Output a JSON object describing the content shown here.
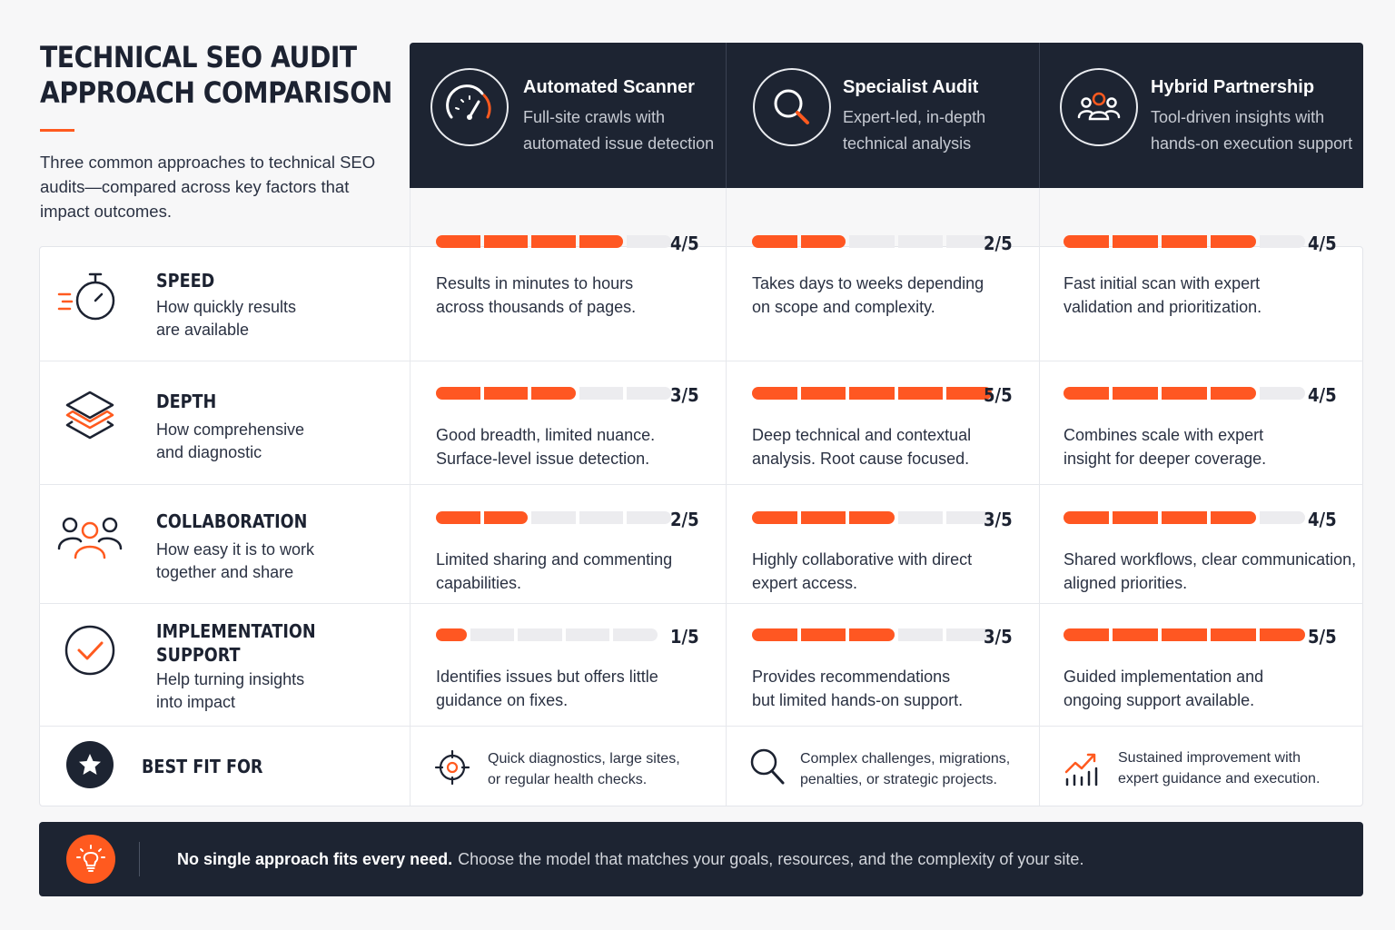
{
  "title": {
    "line1": "TECHNICAL SEO AUDIT",
    "line2": "APPROACH COMPARISON"
  },
  "subtitle": {
    "line1": "Three common approaches to technical SEO",
    "line2": "audits—compared across key factors that",
    "line3": "impact outcomes."
  },
  "colors": {
    "accent": "#ff5722",
    "dark": "#1d2432",
    "bar_empty": "#ececef"
  },
  "approaches": [
    {
      "title": "Automated Scanner",
      "desc1": "Full-site crawls with",
      "desc2": "automated issue detection",
      "icon": "speedometer-icon"
    },
    {
      "title": "Specialist Audit",
      "desc1": "Expert-led, in-depth",
      "desc2": "technical analysis",
      "icon": "magnifier-icon"
    },
    {
      "title": "Hybrid Partnership",
      "desc1": "Tool-driven insights with",
      "desc2": "hands-on execution support",
      "icon": "team-icon"
    }
  ],
  "factors": [
    {
      "title1": "SPEED",
      "title2": "",
      "desc1": "How quickly results",
      "desc2": "are available",
      "icon": "stopwatch-icon",
      "cells": [
        {
          "score": 4,
          "label": "4/5",
          "line1": "Results in minutes to hours",
          "line2": "across thousands of pages."
        },
        {
          "score": 2,
          "label": "2/5",
          "line1": "Takes days to weeks depending",
          "line2": "on scope and complexity."
        },
        {
          "score": 4,
          "label": "4/5",
          "line1": "Fast initial scan with expert",
          "line2": "validation and prioritization."
        }
      ]
    },
    {
      "title1": "DEPTH",
      "title2": "",
      "desc1": "How comprehensive",
      "desc2": "and diagnostic",
      "icon": "layers-icon",
      "cells": [
        {
          "score": 3,
          "label": "3/5",
          "line1": "Good breadth, limited nuance.",
          "line2": "Surface-level issue detection."
        },
        {
          "score": 5,
          "label": "5/5",
          "line1": "Deep technical and contextual",
          "line2": "analysis. Root cause focused."
        },
        {
          "score": 4,
          "label": "4/5",
          "line1": "Combines scale with expert",
          "line2": "insight for deeper coverage."
        }
      ]
    },
    {
      "title1": "COLLABORATION",
      "title2": "",
      "desc1": "How easy it is to work",
      "desc2": "together and share",
      "icon": "people-icon",
      "cells": [
        {
          "score": 2,
          "label": "2/5",
          "line1": "Limited sharing and commenting",
          "line2": "capabilities."
        },
        {
          "score": 3,
          "label": "3/5",
          "line1": "Highly collaborative with direct",
          "line2": "expert access."
        },
        {
          "score": 4,
          "label": "4/5",
          "line1": "Shared workflows, clear communication,",
          "line2": "aligned priorities."
        }
      ]
    },
    {
      "title1": "IMPLEMENTATION",
      "title2": "SUPPORT",
      "desc1": "Help turning insights",
      "desc2": "into impact",
      "icon": "check-circle-icon",
      "cells": [
        {
          "score": 1,
          "label": "1/5",
          "line1": "Identifies issues but offers little",
          "line2": "guidance on fixes."
        },
        {
          "score": 3,
          "label": "3/5",
          "line1": "Provides recommendations",
          "line2": "but limited hands-on support."
        },
        {
          "score": 5,
          "label": "5/5",
          "line1": "Guided implementation and",
          "line2": "ongoing support available."
        }
      ]
    }
  ],
  "best_fit": {
    "title": "BEST FIT FOR",
    "icon": "star-badge-icon",
    "items": [
      {
        "line1": "Quick diagnostics, large sites,",
        "line2": "or regular health checks.",
        "icon": "target-icon"
      },
      {
        "line1": "Complex challenges, migrations,",
        "line2": "penalties, or strategic projects.",
        "icon": "search-icon"
      },
      {
        "line1": "Sustained improvement with",
        "line2": "expert guidance and execution.",
        "icon": "growth-chart-icon"
      }
    ]
  },
  "footer": {
    "bold": "No single approach fits every need.",
    "text": "Choose the model that matches your goals, resources, and the complexity of your site.",
    "icon": "lightbulb-icon"
  }
}
